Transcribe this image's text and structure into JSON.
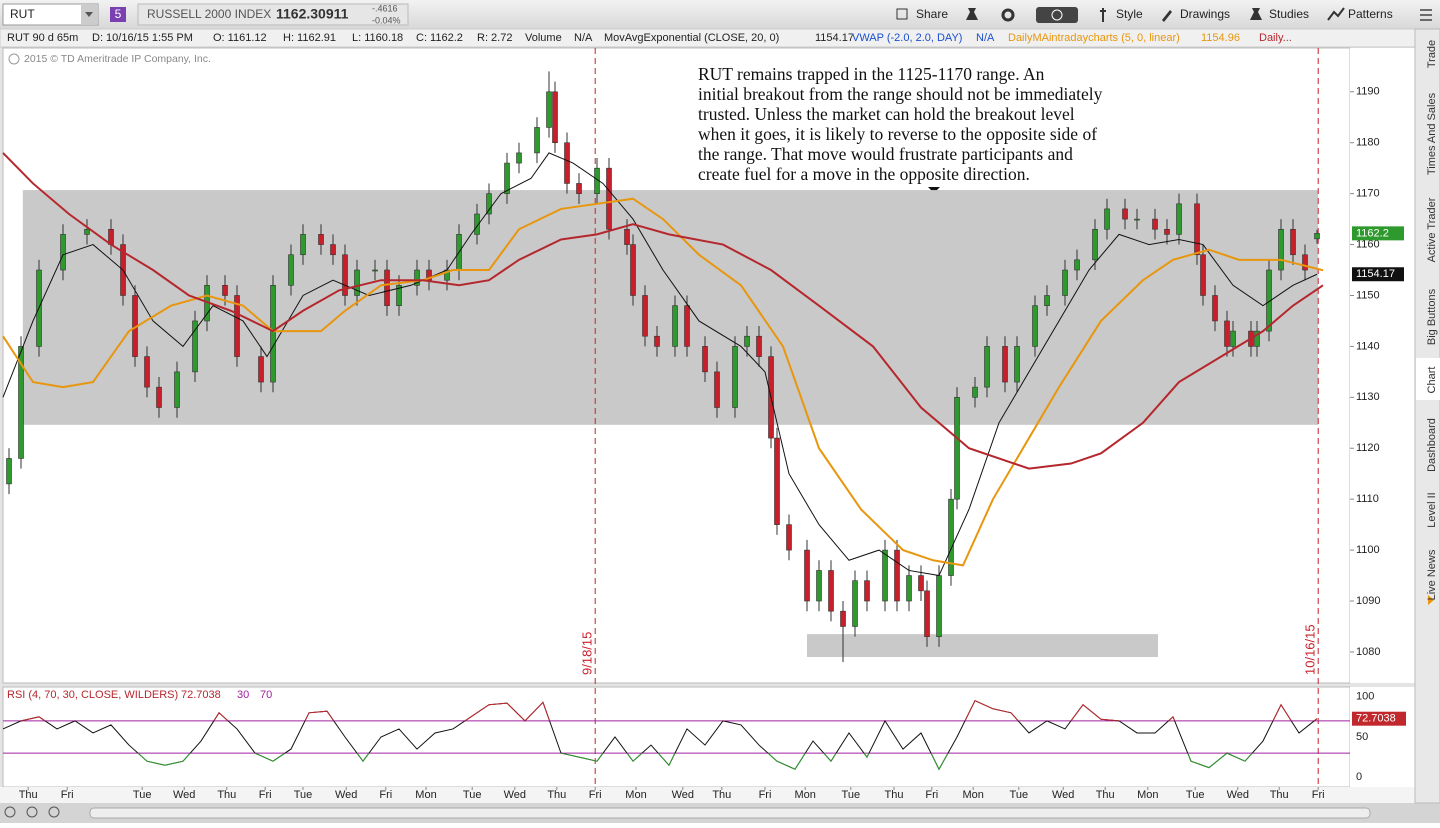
{
  "toolbar": {
    "symbol": "RUT",
    "badge": "5",
    "name": "RUSSELL 2000 INDEX",
    "last": "1162.30911",
    "change": "-.4616",
    "change_pct": "-0.04%",
    "buttons": [
      "Share",
      "Style",
      "Drawings",
      "Studies",
      "Patterns"
    ]
  },
  "info_bar": [
    "RUT 90 d 65m",
    "D: 10/16/15 1:55 PM",
    "O: 1161.12",
    "H: 1162.91",
    "L: 1160.18",
    "C: 1162.2",
    "R: 2.72",
    "Volume",
    "N/A",
    "VWAP (-2.0, 2.0, DAY)",
    "N/A"
  ],
  "copyright": "2015 © TD Ameritrade IP Company, Inc.",
  "side_tabs": [
    "Trade",
    "Times And Sales",
    "Active Trader",
    "Big Buttons",
    "Chart",
    "Dashboard",
    "Level II",
    "Live News"
  ],
  "chart_data": [
    {
      "type": "candlestick",
      "up_color": "#2e9a2e",
      "down_color": "#c8202a",
      "x": [
        1,
        3,
        6,
        10,
        14,
        18,
        20,
        22,
        24,
        26,
        29,
        32,
        34,
        37,
        39,
        43,
        45,
        48,
        50,
        53,
        55,
        57,
        59,
        62,
        64,
        66,
        69,
        71,
        74,
        76,
        79,
        81,
        84,
        86,
        89,
        91,
        92,
        94,
        96,
        99,
        101,
        104,
        105,
        107,
        109,
        112,
        114,
        117,
        119,
        122,
        124,
        126,
        128,
        129,
        131,
        134,
        136,
        138,
        140,
        142,
        144,
        147,
        149,
        151,
        153,
        154,
        156,
        158,
        159,
        162,
        164,
        167,
        169,
        172,
        174,
        177,
        179,
        182,
        184,
        187,
        189,
        192,
        194,
        196,
        199,
        200,
        202,
        204,
        205,
        208,
        209,
        211,
        213,
        215,
        217,
        219
      ],
      "open": [
        1113,
        1118,
        1140,
        1155,
        1162,
        1163,
        1160,
        1150,
        1138,
        1132,
        1128,
        1135,
        1145,
        1152,
        1150,
        1138,
        1133,
        1152,
        1158,
        1162,
        1160,
        1158,
        1150,
        1155,
        1155,
        1148,
        1152,
        1155,
        1153,
        1155,
        1162,
        1166,
        1170,
        1176,
        1178,
        1183,
        1190,
        1180,
        1172,
        1170,
        1175,
        1163,
        1160,
        1150,
        1142,
        1140,
        1148,
        1140,
        1135,
        1128,
        1140,
        1142,
        1138,
        1122,
        1105,
        1100,
        1090,
        1096,
        1088,
        1085,
        1094,
        1090,
        1100,
        1090,
        1095,
        1092,
        1083,
        1095,
        1110,
        1130,
        1132,
        1140,
        1133,
        1140,
        1148,
        1150,
        1155,
        1157,
        1163,
        1167,
        1165,
        1165,
        1163,
        1162,
        1168,
        1158,
        1150,
        1145,
        1140,
        1143,
        1140,
        1143,
        1155,
        1163,
        1158,
        1161.12
      ],
      "high": [
        1120,
        1142,
        1157,
        1164,
        1165,
        1165,
        1162,
        1152,
        1140,
        1134,
        1137,
        1147,
        1154,
        1154,
        1152,
        1140,
        1154,
        1160,
        1164,
        1164,
        1162,
        1160,
        1157,
        1157,
        1157,
        1154,
        1157,
        1157,
        1157,
        1164,
        1168,
        1172,
        1178,
        1180,
        1185,
        1194,
        1192,
        1182,
        1174,
        1177,
        1177,
        1165,
        1162,
        1152,
        1144,
        1150,
        1150,
        1142,
        1137,
        1142,
        1144,
        1144,
        1140,
        1124,
        1107,
        1102,
        1098,
        1098,
        1090,
        1096,
        1096,
        1102,
        1102,
        1097,
        1097,
        1094,
        1097,
        1112,
        1132,
        1134,
        1142,
        1142,
        1142,
        1150,
        1152,
        1157,
        1159,
        1165,
        1169,
        1169,
        1167,
        1167,
        1165,
        1170,
        1170,
        1160,
        1152,
        1147,
        1145,
        1145,
        1145,
        1157,
        1165,
        1165,
        1160,
        1162.91
      ],
      "low": [
        1111,
        1116,
        1138,
        1153,
        1160,
        1158,
        1148,
        1136,
        1130,
        1126,
        1126,
        1133,
        1143,
        1148,
        1136,
        1131,
        1131,
        1150,
        1156,
        1158,
        1156,
        1148,
        1148,
        1153,
        1146,
        1146,
        1150,
        1151,
        1151,
        1153,
        1160,
        1164,
        1168,
        1174,
        1176,
        1181,
        1178,
        1170,
        1168,
        1168,
        1161,
        1158,
        1148,
        1140,
        1138,
        1138,
        1138,
        1133,
        1126,
        1126,
        1138,
        1136,
        1120,
        1103,
        1098,
        1088,
        1088,
        1086,
        1078,
        1083,
        1088,
        1088,
        1088,
        1088,
        1090,
        1081,
        1081,
        1093,
        1108,
        1128,
        1130,
        1131,
        1131,
        1138,
        1146,
        1148,
        1153,
        1155,
        1161,
        1163,
        1163,
        1161,
        1160,
        1160,
        1156,
        1148,
        1143,
        1138,
        1138,
        1138,
        1138,
        1141,
        1153,
        1156,
        1153,
        1160.18
      ],
      "close": [
        1118,
        1140,
        1155,
        1162,
        1163,
        1160,
        1150,
        1138,
        1132,
        1128,
        1135,
        1145,
        1152,
        1150,
        1138,
        1133,
        1152,
        1158,
        1162,
        1160,
        1158,
        1150,
        1155,
        1155,
        1148,
        1152,
        1155,
        1153,
        1155,
        1162,
        1166,
        1170,
        1176,
        1178,
        1183,
        1190,
        1180,
        1172,
        1170,
        1175,
        1163,
        1160,
        1150,
        1142,
        1140,
        1148,
        1140,
        1135,
        1128,
        1140,
        1142,
        1138,
        1122,
        1105,
        1100,
        1090,
        1096,
        1088,
        1085,
        1094,
        1090,
        1100,
        1090,
        1095,
        1092,
        1083,
        1095,
        1110,
        1130,
        1132,
        1140,
        1133,
        1140,
        1148,
        1150,
        1155,
        1157,
        1163,
        1167,
        1165,
        1165,
        1163,
        1162,
        1168,
        1158,
        1150,
        1145,
        1140,
        1143,
        1140,
        1143,
        1155,
        1163,
        1158,
        1155,
        1162.2
      ],
      "series": [
        {
          "name": "MovAvgExponential (CLOSE, 20, 0)",
          "color": "#111111",
          "x": [
            0,
            5,
            10,
            15,
            20,
            25,
            30,
            35,
            40,
            44,
            50,
            55,
            61,
            68,
            74,
            78,
            83,
            88,
            91,
            95,
            100,
            105,
            110,
            116,
            123,
            127,
            131,
            136,
            141,
            146,
            151,
            156,
            161,
            166,
            171,
            176,
            181,
            186,
            191,
            196,
            200,
            205,
            210,
            215,
            219
          ],
          "values": [
            1130,
            1145,
            1158,
            1160,
            1155,
            1145,
            1140,
            1148,
            1145,
            1138,
            1150,
            1153,
            1150,
            1152,
            1155,
            1162,
            1170,
            1173,
            1178,
            1176,
            1172,
            1165,
            1155,
            1145,
            1140,
            1135,
            1115,
            1105,
            1098,
            1100,
            1096,
            1095,
            1108,
            1125,
            1135,
            1145,
            1155,
            1162,
            1160,
            1161,
            1160,
            1152,
            1148,
            1152,
            1154.17
          ]
        },
        {
          "name": "DailyMAintradaycharts (5, 0, linear)",
          "color": "#e8960e",
          "x": [
            0,
            5,
            10,
            15,
            21,
            28,
            34,
            40,
            45,
            53,
            57,
            63,
            70,
            75,
            81,
            86,
            93,
            99,
            105,
            110,
            116,
            123,
            130,
            136,
            143,
            150,
            155,
            160,
            165,
            171,
            176,
            183,
            190,
            195,
            201,
            206,
            213,
            220
          ],
          "values": [
            1142,
            1133,
            1132,
            1133,
            1143,
            1148,
            1150,
            1148,
            1143,
            1143,
            1147,
            1152,
            1153,
            1155,
            1155,
            1163,
            1167,
            1168,
            1169,
            1165,
            1158,
            1152,
            1140,
            1120,
            1108,
            1100,
            1098,
            1097,
            1110,
            1122,
            1132,
            1145,
            1153,
            1157,
            1159,
            1157,
            1157,
            1154.96
          ]
        },
        {
          "name": "Daily...",
          "color": "#b5272d",
          "x": [
            0,
            5,
            11,
            18,
            25,
            31,
            38,
            45,
            50,
            56,
            63,
            70,
            76,
            81,
            86,
            93,
            99,
            105,
            111,
            120,
            128,
            136,
            145,
            153,
            161,
            171,
            178,
            183,
            190,
            196,
            203,
            210,
            215,
            220
          ],
          "values": [
            1178,
            1172,
            1166,
            1160,
            1155,
            1150,
            1147,
            1143,
            1147,
            1151,
            1153,
            1153,
            1152,
            1153,
            1157,
            1161,
            1162,
            1164,
            1162,
            1160,
            1155,
            1148,
            1140,
            1128,
            1120,
            1116,
            1117,
            1119,
            1125,
            1133,
            1138,
            1143,
            1148,
            1152
          ]
        }
      ],
      "zones": [
        {
          "x": [
            3.3,
            219.2
          ],
          "y": [
            1124.6,
            1170.7
          ]
        },
        {
          "x": [
            134,
            192.5
          ],
          "y": [
            1079,
            1083.5
          ]
        }
      ],
      "events": [
        {
          "x": 98.7,
          "label": "9/18/15"
        },
        {
          "x": 219.2,
          "label": "10/16/15"
        }
      ],
      "annotation": [
        "RUT remains trapped in the 1125-1170 range.  An",
        "initial breakout from the range should not be immediately",
        "trusted.  Unless the market can hold the breakout level",
        "when it goes, it is likely to reverse to the opposite side of",
        "the range.  That move would frustrate participants and",
        "create fuel for a move in the opposite direction."
      ],
      "xlim": [
        0,
        224.5
      ],
      "xticks": [
        {
          "value": 4.2,
          "label": "Thu"
        },
        {
          "value": 10.7,
          "label": "Fri"
        },
        {
          "value": 23.2,
          "label": "Tue"
        },
        {
          "value": 30.2,
          "label": "Wed"
        },
        {
          "value": 37.3,
          "label": "Thu"
        },
        {
          "value": 43.7,
          "label": "Fri"
        },
        {
          "value": 50,
          "label": "Tue"
        },
        {
          "value": 57.2,
          "label": "Wed"
        },
        {
          "value": 63.8,
          "label": "Fri"
        },
        {
          "value": 70.5,
          "label": "Mon"
        },
        {
          "value": 78.2,
          "label": "Tue"
        },
        {
          "value": 85.3,
          "label": "Wed"
        },
        {
          "value": 92.3,
          "label": "Thu"
        },
        {
          "value": 98.7,
          "label": "Fri"
        },
        {
          "value": 105.5,
          "label": "Mon"
        },
        {
          "value": 113.3,
          "label": "Wed"
        },
        {
          "value": 119.8,
          "label": "Thu"
        },
        {
          "value": 127,
          "label": "Fri"
        },
        {
          "value": 133.7,
          "label": "Mon"
        },
        {
          "value": 141.3,
          "label": "Tue"
        },
        {
          "value": 148.5,
          "label": "Thu"
        },
        {
          "value": 154.8,
          "label": "Fri"
        },
        {
          "value": 161.7,
          "label": "Mon"
        },
        {
          "value": 169.3,
          "label": "Tue"
        },
        {
          "value": 176.7,
          "label": "Wed"
        },
        {
          "value": 183.7,
          "label": "Thu"
        },
        {
          "value": 190.8,
          "label": "Mon"
        },
        {
          "value": 198.7,
          "label": "Tue"
        },
        {
          "value": 205.8,
          "label": "Wed"
        },
        {
          "value": 212.7,
          "label": "Thu"
        },
        {
          "value": 219.2,
          "label": "Fri"
        }
      ],
      "ylim": [
        1073.9,
        1198.6
      ],
      "yticks": [
        1080,
        1090,
        1100,
        1110,
        1120,
        1130,
        1140,
        1150,
        1160,
        1170,
        1180,
        1190
      ]
    },
    {
      "type": "line",
      "title": "RSI (4, 70, 30, CLOSE, WILDERS)",
      "levels": [
        30,
        70
      ],
      "level_color": "#a020a0",
      "over_color": "#c0282d",
      "under_color": "#2e9a2e",
      "series": [
        {
          "color": "#111111",
          "x": [
            0,
            3,
            6,
            9,
            12,
            15,
            18,
            21,
            24,
            27,
            30,
            33,
            36,
            39,
            42,
            45,
            48,
            51,
            54,
            57,
            60,
            63,
            66,
            69,
            72,
            75,
            78,
            81,
            84,
            87,
            90,
            93,
            96,
            99,
            102,
            105,
            108,
            111,
            114,
            117,
            120,
            123,
            126,
            129,
            132,
            135,
            138,
            141,
            144,
            147,
            150,
            153,
            156,
            159,
            162,
            165,
            168,
            171,
            174,
            177,
            180,
            183,
            186,
            189,
            192,
            195,
            198,
            201,
            204,
            207,
            210,
            213,
            216,
            219
          ],
          "values": [
            60,
            70,
            75,
            60,
            70,
            55,
            65,
            40,
            20,
            15,
            20,
            45,
            80,
            60,
            30,
            20,
            35,
            80,
            82,
            50,
            20,
            50,
            60,
            35,
            55,
            60,
            75,
            90,
            92,
            70,
            93,
            30,
            25,
            20,
            50,
            20,
            40,
            15,
            60,
            40,
            70,
            65,
            40,
            20,
            10,
            45,
            20,
            55,
            25,
            70,
            35,
            55,
            10,
            50,
            95,
            85,
            80,
            55,
            70,
            60,
            90,
            72,
            70,
            55,
            55,
            75,
            20,
            12,
            30,
            20,
            45,
            90,
            55,
            72.7038
          ]
        }
      ],
      "ylim": [
        -12,
        112
      ],
      "yticks": [
        0,
        50,
        100
      ]
    }
  ]
}
